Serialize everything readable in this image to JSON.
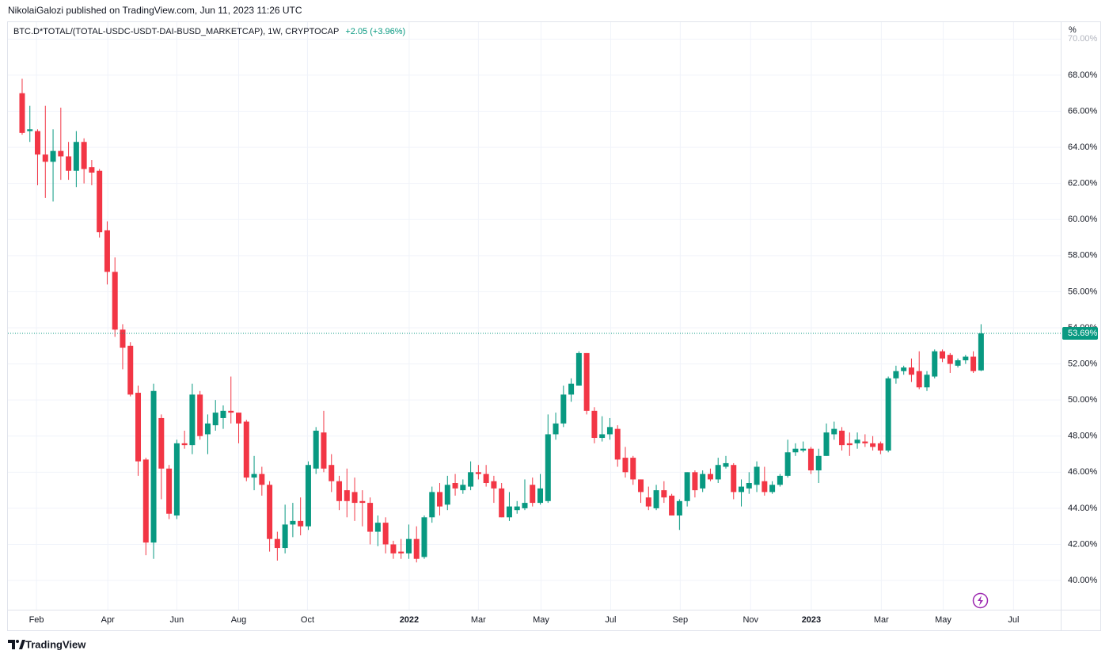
{
  "published": "NikolaiGalozi published on TradingView.com, Jun 11, 2023 11:26 UTC",
  "brand": "TradingView",
  "chart_data": {
    "type": "candlestick",
    "symbol": "BTC.D*TOTAL/(TOTAL-USDC-USDT-DAI-BUSD_MARKETCAP), 1W, CRYPTOCAP",
    "change": "+2.05 (+3.96%)",
    "unit": "%",
    "up_color": "#089981",
    "down_color": "#f23645",
    "grid": true,
    "open": [
      67.0,
      64.9,
      64.9,
      63.6,
      63.2,
      63.8,
      63.5,
      62.7,
      64.3,
      62.9,
      62.7,
      59.4,
      57.1,
      53.9,
      53.0,
      50.4,
      46.7,
      42.1,
      49.0,
      46.2,
      43.6,
      47.6,
      47.5,
      50.3,
      48.1,
      48.6,
      49.0,
      49.4,
      49.3,
      48.8,
      45.7,
      45.9,
      45.3,
      42.3,
      41.8,
      43.1,
      43.3,
      43.0,
      46.2,
      48.2,
      46.4,
      45.5,
      45.0,
      44.9,
      44.4,
      44.3,
      42.7,
      43.2,
      42.0,
      41.6,
      41.5,
      42.3,
      41.3,
      43.5,
      44.9,
      44.2,
      45.4,
      45.0,
      45.2,
      46.0,
      45.9,
      45.5,
      45.1,
      43.5,
      43.9,
      44.0,
      45.3,
      44.3,
      44.4,
      48.1,
      48.7,
      50.3,
      50.8,
      52.6,
      49.4,
      47.9,
      48.1,
      48.4,
      46.8,
      46.8,
      45.6,
      44.6,
      44.0,
      45.0,
      44.7,
      43.6,
      44.4,
      46.0,
      45.1,
      45.9,
      45.6,
      46.3,
      46.4,
      44.9,
      45.1,
      45.3,
      45.5,
      44.9,
      45.3,
      45.8,
      47.1,
      47.2,
      47.3,
      46.1,
      46.9,
      48.1,
      48.3,
      47.6,
      47.6,
      47.7,
      47.6,
      47.6,
      47.2,
      51.2,
      51.6,
      51.8,
      51.6,
      50.7,
      51.3,
      52.7,
      52.5,
      51.9,
      52.2,
      52.4,
      51.64
    ],
    "close": [
      64.8,
      65.0,
      63.6,
      63.2,
      63.8,
      63.5,
      62.7,
      64.3,
      62.8,
      62.6,
      59.3,
      57.1,
      53.9,
      52.9,
      50.3,
      46.6,
      42.1,
      50.5,
      46.2,
      43.7,
      47.6,
      47.5,
      50.3,
      48.0,
      48.7,
      49.3,
      49.4,
      49.3,
      48.7,
      45.7,
      45.9,
      45.3,
      42.3,
      41.8,
      43.1,
      43.3,
      43.0,
      46.4,
      48.3,
      46.2,
      45.5,
      44.4,
      44.4,
      44.3,
      44.3,
      42.7,
      43.2,
      42.0,
      41.5,
      41.5,
      42.3,
      41.2,
      43.5,
      44.9,
      44.1,
      45.3,
      45.1,
      45.3,
      46.0,
      45.9,
      45.4,
      45.1,
      43.5,
      44.1,
      44.1,
      44.3,
      44.3,
      45.1,
      48.1,
      48.7,
      50.3,
      50.9,
      52.6,
      49.4,
      47.9,
      48.1,
      48.5,
      46.7,
      46.0,
      45.6,
      44.9,
      44.1,
      45.0,
      44.6,
      43.6,
      44.4,
      46.0,
      45.0,
      45.9,
      45.6,
      46.4,
      46.5,
      44.9,
      45.2,
      45.4,
      46.3,
      44.9,
      45.3,
      45.8,
      47.1,
      47.3,
      47.3,
      46.1,
      46.9,
      48.2,
      48.4,
      47.5,
      47.5,
      47.8,
      47.6,
      47.4,
      47.2,
      51.2,
      51.6,
      51.8,
      51.4,
      50.7,
      51.4,
      52.7,
      52.3,
      52.0,
      52.2,
      52.4,
      51.6,
      53.69
    ],
    "high": [
      67.8,
      66.3,
      65.0,
      66.3,
      65.0,
      66.2,
      64.3,
      64.9,
      64.5,
      63.3,
      62.8,
      59.9,
      57.9,
      54.2,
      53.2,
      50.8,
      46.8,
      50.9,
      49.2,
      46.4,
      47.8,
      48.3,
      50.9,
      50.5,
      49.2,
      50.0,
      49.7,
      51.3,
      49.3,
      48.9,
      46.9,
      46.3,
      45.5,
      42.7,
      44.2,
      44.3,
      44.6,
      46.6,
      48.5,
      49.4,
      47.0,
      45.8,
      46.2,
      45.7,
      45.0,
      44.6,
      43.6,
      43.5,
      42.2,
      42.3,
      43.1,
      43.0,
      43.6,
      45.2,
      45.4,
      45.8,
      45.9,
      45.6,
      46.6,
      46.4,
      46.4,
      45.8,
      45.4,
      44.9,
      44.4,
      45.6,
      45.7,
      45.9,
      49.2,
      49.3,
      50.8,
      51.2,
      52.7,
      52.6,
      49.6,
      49.1,
      49.0,
      48.6,
      47.4,
      46.9,
      45.6,
      45.2,
      45.3,
      45.5,
      44.8,
      44.5,
      46.0,
      46.1,
      46.1,
      46.2,
      46.8,
      46.9,
      46.5,
      45.6,
      46.0,
      46.6,
      46.3,
      45.5,
      45.9,
      47.8,
      47.6,
      47.7,
      47.4,
      47.3,
      48.7,
      48.8,
      48.5,
      48.2,
      48.2,
      48.1,
      48.0,
      47.7,
      51.3,
      51.9,
      51.9,
      52.3,
      52.7,
      51.6,
      52.8,
      52.8,
      52.6,
      52.3,
      52.5,
      52.7,
      54.2
    ],
    "low": [
      64.7,
      64.3,
      61.9,
      61.2,
      61.0,
      62.2,
      62.2,
      61.8,
      62.0,
      61.9,
      59.0,
      56.4,
      53.5,
      51.7,
      50.2,
      45.8,
      41.4,
      41.2,
      44.5,
      43.4,
      43.4,
      47.3,
      47.0,
      47.8,
      47.0,
      48.3,
      48.4,
      48.7,
      47.6,
      45.5,
      45.0,
      44.7,
      41.6,
      41.1,
      41.5,
      42.4,
      42.5,
      42.8,
      45.9,
      46.0,
      44.9,
      43.9,
      43.5,
      43.3,
      43.0,
      42.0,
      41.9,
      41.5,
      41.2,
      41.2,
      41.2,
      41.0,
      41.2,
      43.2,
      43.6,
      43.9,
      44.7,
      44.8,
      45.0,
      45.6,
      45.2,
      44.3,
      43.5,
      43.3,
      43.7,
      43.9,
      44.1,
      44.2,
      44.3,
      47.8,
      48.5,
      49.9,
      50.8,
      49.2,
      47.6,
      47.7,
      47.8,
      46.3,
      45.7,
      45.3,
      44.3,
      43.9,
      43.9,
      44.3,
      43.6,
      42.8,
      44.1,
      44.6,
      44.9,
      45.5,
      45.4,
      46.2,
      44.5,
      44.1,
      44.8,
      44.9,
      44.7,
      44.8,
      45.2,
      45.7,
      46.9,
      47.1,
      45.9,
      45.4,
      46.9,
      47.8,
      47.2,
      46.9,
      47.3,
      47.4,
      47.2,
      47.0,
      47.1,
      50.9,
      51.4,
      51.0,
      50.6,
      50.5,
      51.2,
      52.1,
      51.5,
      51.8,
      52.0,
      51.5,
      51.6
    ],
    "last_price": {
      "value": 53.69,
      "label": "53.69%"
    },
    "xlim": [
      -1.84,
      134.3
    ],
    "xticks": [
      {
        "value": 1.85,
        "label": "Feb"
      },
      {
        "value": 11.08,
        "label": "Apr"
      },
      {
        "value": 20.0,
        "label": "Jun"
      },
      {
        "value": 28.0,
        "label": "Aug"
      },
      {
        "value": 36.9,
        "label": "Oct"
      },
      {
        "value": 50.05,
        "label": "2022"
      },
      {
        "value": 59.0,
        "label": "Mar"
      },
      {
        "value": 67.1,
        "label": "May"
      },
      {
        "value": 76.1,
        "label": "Jul"
      },
      {
        "value": 85.1,
        "label": "Sep"
      },
      {
        "value": 94.2,
        "label": "Nov"
      },
      {
        "value": 102.05,
        "label": "2023"
      },
      {
        "value": 111.1,
        "label": "Mar"
      },
      {
        "value": 119.1,
        "label": "May"
      },
      {
        "value": 128.2,
        "label": "Jul"
      }
    ],
    "ylim": [
      38.38,
      70.19
    ],
    "yticks": [
      {
        "value": 40,
        "label": "40.00%"
      },
      {
        "value": 42,
        "label": "42.00%"
      },
      {
        "value": 44,
        "label": "44.00%"
      },
      {
        "value": 46,
        "label": "46.00%"
      },
      {
        "value": 48,
        "label": "48.00%"
      },
      {
        "value": 50,
        "label": "50.00%"
      },
      {
        "value": 52,
        "label": "52.00%"
      },
      {
        "value": 54,
        "label": "54.00%"
      },
      {
        "value": 56,
        "label": "56.00%"
      },
      {
        "value": 58,
        "label": "58.00%"
      },
      {
        "value": 60,
        "label": "60.00%"
      },
      {
        "value": 62,
        "label": "62.00%"
      },
      {
        "value": 64,
        "label": "64.00%"
      },
      {
        "value": 66,
        "label": "66.00%"
      },
      {
        "value": 68,
        "label": "68.00%"
      },
      {
        "value": 70,
        "label": "70.00%"
      }
    ]
  }
}
